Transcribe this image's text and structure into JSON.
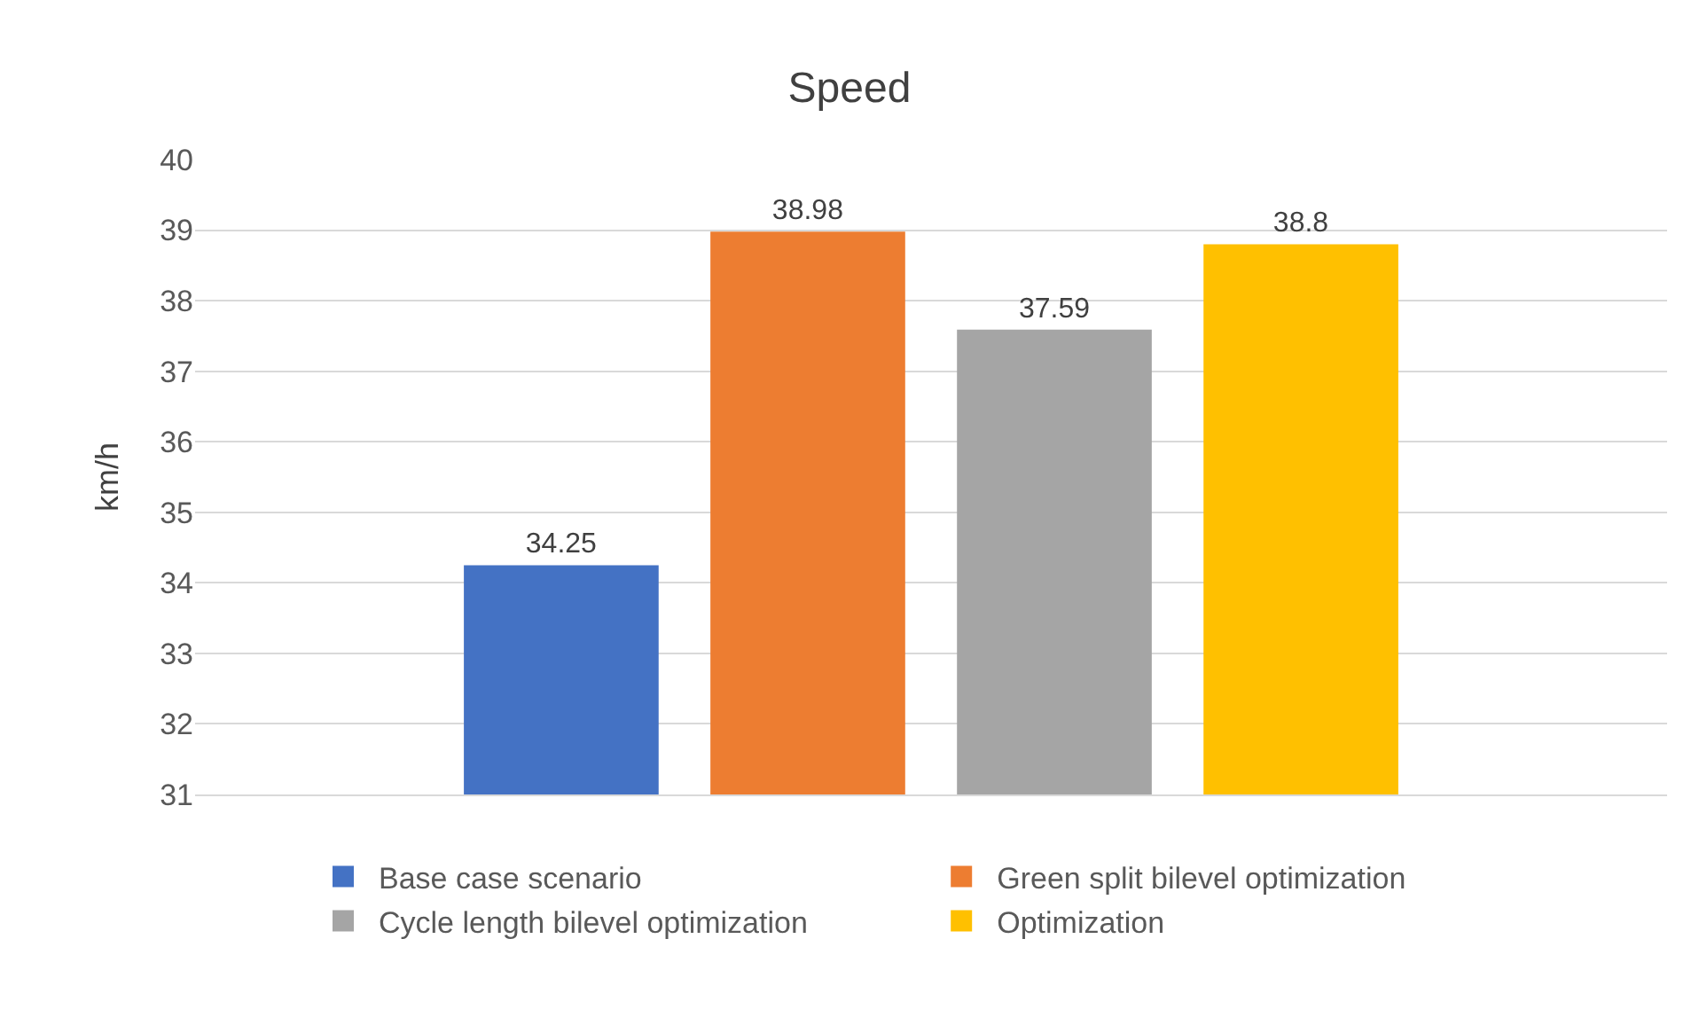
{
  "chart_data": {
    "type": "bar",
    "title": "Speed",
    "ylabel": "km/h",
    "categories": [
      null
    ],
    "series": [
      {
        "name": "Base case scenario",
        "color": "#4472c4",
        "values": [
          34.25
        ]
      },
      {
        "name": "Green split bilevel optimization",
        "color": "#ed7d31",
        "values": [
          38.98
        ]
      },
      {
        "name": "Cycle length bilevel optimization",
        "color": "#a5a5a5",
        "values": [
          37.59
        ]
      },
      {
        "name": "Optimization",
        "color": "#ffc000",
        "values": [
          38.8
        ]
      }
    ],
    "ylim": [
      31,
      40
    ],
    "yticks": [
      31,
      32,
      33,
      34,
      35,
      36,
      37,
      38,
      39,
      40
    ],
    "grid": "y",
    "legend": "bottom",
    "data_labels": true,
    "tick_labels": "y"
  }
}
